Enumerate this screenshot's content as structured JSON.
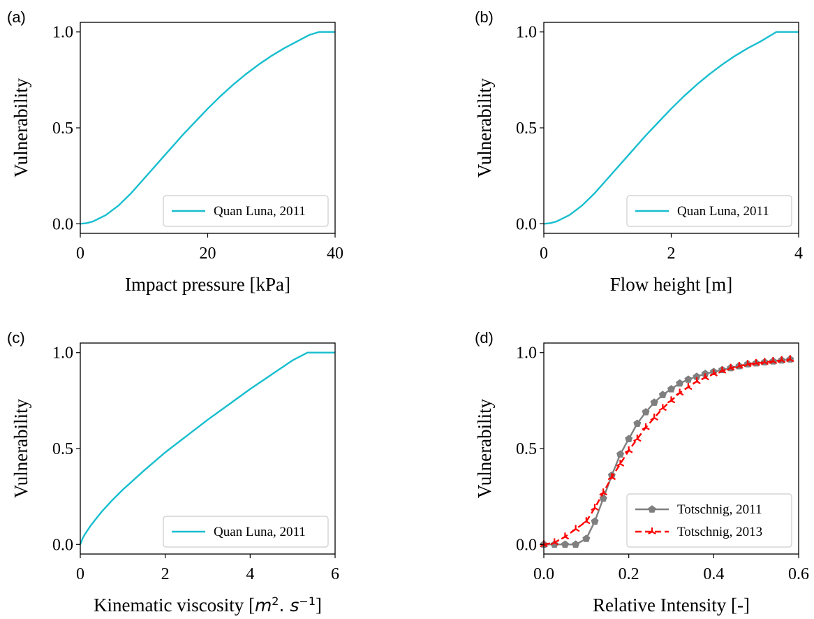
{
  "chart_data": [
    {
      "type": "line",
      "panel_label": "(a)",
      "xlabel": "Impact pressure [kPa]",
      "xlabel_html": "",
      "ylabel": "Vulnerability",
      "xlim": [
        0,
        40
      ],
      "ylim": [
        -0.05,
        1.05
      ],
      "xticks": [
        0,
        20,
        40
      ],
      "xtick_labels": [
        "0",
        "20",
        "40"
      ],
      "yticks": [
        0,
        0.5,
        1
      ],
      "ytick_labels": [
        "0.0",
        "0.5",
        "1.0"
      ],
      "legend_position": "lower-right",
      "series": [
        {
          "name": "Quan Luna, 2011",
          "color": "#17becf",
          "x": [
            0,
            1,
            2,
            4,
            6,
            8,
            10,
            12,
            14,
            16,
            18,
            20,
            22,
            24,
            26,
            28,
            30,
            32,
            34,
            36,
            37.5,
            40
          ],
          "y": [
            0,
            0.003,
            0.012,
            0.045,
            0.095,
            0.16,
            0.235,
            0.31,
            0.385,
            0.46,
            0.53,
            0.6,
            0.665,
            0.725,
            0.78,
            0.83,
            0.875,
            0.915,
            0.95,
            0.985,
            1.0,
            1.0
          ]
        }
      ]
    },
    {
      "type": "line",
      "panel_label": "(b)",
      "xlabel": "Flow height [m]",
      "ylabel": "Vulnerability",
      "xlim": [
        0,
        4
      ],
      "ylim": [
        -0.05,
        1.05
      ],
      "xticks": [
        0,
        2,
        4
      ],
      "xtick_labels": [
        "0",
        "2",
        "4"
      ],
      "yticks": [
        0,
        0.5,
        1
      ],
      "ytick_labels": [
        "0.0",
        "0.5",
        "1.0"
      ],
      "legend_position": "lower-right",
      "series": [
        {
          "name": "Quan Luna, 2011",
          "color": "#17becf",
          "x": [
            0,
            0.1,
            0.2,
            0.4,
            0.6,
            0.8,
            1.0,
            1.2,
            1.4,
            1.6,
            1.8,
            2.0,
            2.2,
            2.4,
            2.6,
            2.8,
            3.0,
            3.2,
            3.4,
            3.6,
            3.65,
            4.0
          ],
          "y": [
            0,
            0.003,
            0.012,
            0.045,
            0.095,
            0.16,
            0.235,
            0.31,
            0.385,
            0.46,
            0.53,
            0.6,
            0.665,
            0.725,
            0.78,
            0.83,
            0.875,
            0.915,
            0.95,
            0.99,
            1.0,
            1.0
          ]
        }
      ]
    },
    {
      "type": "line",
      "panel_label": "(c)",
      "xlabel": "Kinematic viscosity [",
      "xlabel_math": "m²·s⁻¹",
      "ylabel": "Vulnerability",
      "xlim": [
        0,
        6
      ],
      "ylim": [
        -0.05,
        1.05
      ],
      "xticks": [
        0,
        2,
        4,
        6
      ],
      "xtick_labels": [
        "0",
        "2",
        "4",
        "6"
      ],
      "yticks": [
        0,
        0.5,
        1
      ],
      "ytick_labels": [
        "0.0",
        "0.5",
        "1.0"
      ],
      "legend_position": "lower-right",
      "series": [
        {
          "name": "Quan Luna, 2011",
          "color": "#17becf",
          "x": [
            0,
            0.05,
            0.1,
            0.25,
            0.5,
            0.75,
            1.0,
            1.5,
            2.0,
            2.5,
            3.0,
            3.5,
            4.0,
            4.5,
            5.0,
            5.35,
            6.0
          ],
          "y": [
            0,
            0.03,
            0.05,
            0.1,
            0.17,
            0.23,
            0.285,
            0.385,
            0.48,
            0.565,
            0.65,
            0.73,
            0.81,
            0.885,
            0.96,
            1.0,
            1.0
          ]
        }
      ]
    },
    {
      "type": "line",
      "panel_label": "(d)",
      "xlabel": "Relative Intensity [-]",
      "ylabel": "Vulnerability",
      "xlim": [
        0,
        0.6
      ],
      "ylim": [
        -0.05,
        1.05
      ],
      "xticks": [
        0,
        0.2,
        0.4,
        0.6
      ],
      "xtick_labels": [
        "0.0",
        "0.2",
        "0.4",
        "0.6"
      ],
      "yticks": [
        0,
        0.5,
        1
      ],
      "ytick_labels": [
        "0.0",
        "0.5",
        "1.0"
      ],
      "legend_position": "lower-right",
      "series": [
        {
          "name": "Totschnig, 2011",
          "color": "#7f7f7f",
          "marker": "pentagon",
          "dash": "solid",
          "x": [
            0,
            0.025,
            0.05,
            0.075,
            0.1,
            0.12,
            0.14,
            0.16,
            0.18,
            0.2,
            0.22,
            0.24,
            0.26,
            0.28,
            0.3,
            0.32,
            0.34,
            0.36,
            0.38,
            0.4,
            0.42,
            0.44,
            0.46,
            0.48,
            0.5,
            0.52,
            0.54,
            0.56,
            0.58
          ],
          "y": [
            0,
            0,
            0,
            0,
            0.03,
            0.12,
            0.24,
            0.36,
            0.47,
            0.55,
            0.63,
            0.69,
            0.74,
            0.78,
            0.81,
            0.84,
            0.86,
            0.875,
            0.89,
            0.9,
            0.91,
            0.92,
            0.93,
            0.94,
            0.945,
            0.95,
            0.955,
            0.96,
            0.965
          ]
        },
        {
          "name": "Totschnig, 2013",
          "color": "#ff0000",
          "marker": "tri",
          "dash": "dashed",
          "x": [
            0,
            0.025,
            0.05,
            0.075,
            0.1,
            0.12,
            0.14,
            0.16,
            0.18,
            0.2,
            0.22,
            0.24,
            0.26,
            0.28,
            0.3,
            0.32,
            0.34,
            0.36,
            0.38,
            0.4,
            0.42,
            0.44,
            0.46,
            0.48,
            0.5,
            0.52,
            0.54,
            0.56,
            0.58
          ],
          "y": [
            0,
            0.01,
            0.04,
            0.08,
            0.12,
            0.19,
            0.27,
            0.35,
            0.42,
            0.49,
            0.55,
            0.61,
            0.66,
            0.71,
            0.75,
            0.79,
            0.82,
            0.85,
            0.87,
            0.89,
            0.905,
            0.92,
            0.93,
            0.94,
            0.945,
            0.95,
            0.955,
            0.96,
            0.965
          ]
        }
      ]
    }
  ]
}
